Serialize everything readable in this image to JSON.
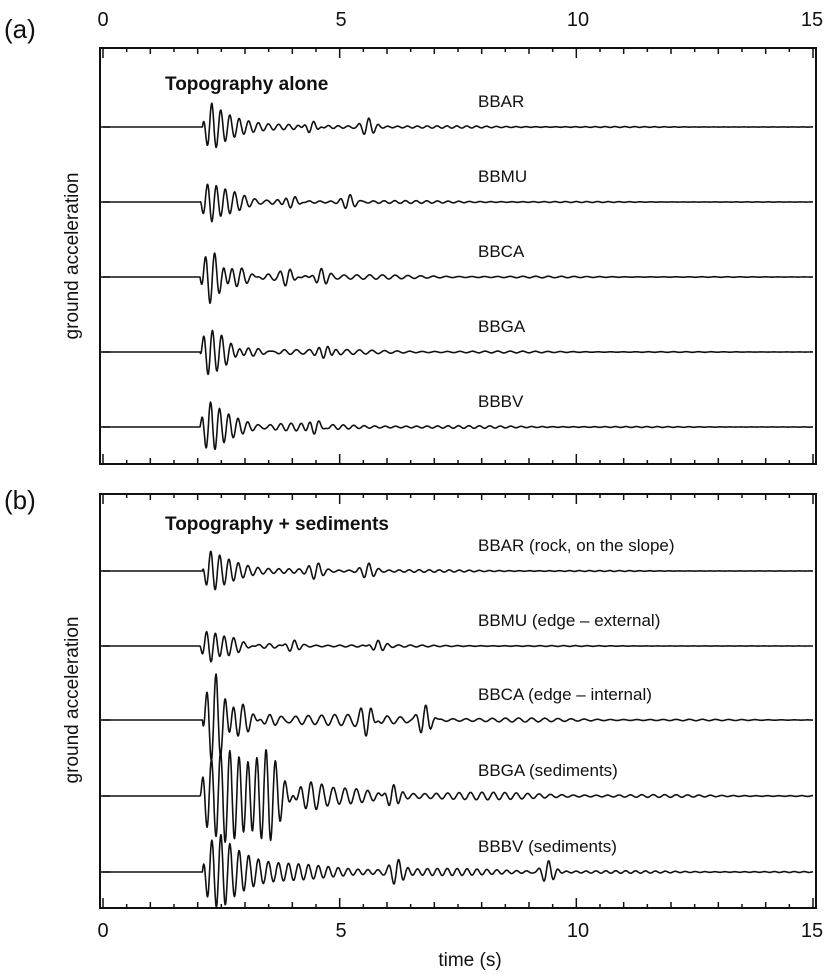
{
  "chart_data": [
    {
      "type": "line",
      "panel_label": "(a)",
      "title": "Topography alone",
      "ylabel": "ground acceleration",
      "xlabel": "",
      "xlim": [
        0,
        15
      ],
      "x_ticks": [
        "0",
        "5",
        "10",
        "15"
      ],
      "x_tick_labels_position": "top",
      "series": [
        {
          "name": "BBAR",
          "label": "BBAR",
          "onset_s": 2.1,
          "peak_s": 2.3,
          "rel_amplitude": 1.0,
          "coda_rel": 0.18,
          "late_bursts_s": [
            4.4,
            5.6
          ]
        },
        {
          "name": "BBMU",
          "label": "BBMU",
          "onset_s": 2.05,
          "peak_s": 2.3,
          "rel_amplitude": 0.85,
          "coda_rel": 0.2,
          "late_bursts_s": [
            4.0,
            5.2
          ]
        },
        {
          "name": "BBCA",
          "label": "BBCA",
          "onset_s": 2.05,
          "peak_s": 2.3,
          "rel_amplitude": 1.0,
          "coda_rel": 0.22,
          "late_bursts_s": [
            3.9,
            4.6
          ]
        },
        {
          "name": "BBGA",
          "label": "BBGA",
          "onset_s": 2.05,
          "peak_s": 2.25,
          "rel_amplitude": 1.05,
          "coda_rel": 0.2,
          "late_bursts_s": [
            4.7
          ]
        },
        {
          "name": "BBBV",
          "label": "BBBV",
          "onset_s": 2.05,
          "peak_s": 2.3,
          "rel_amplitude": 1.05,
          "coda_rel": 0.22,
          "late_bursts_s": [
            4.5
          ]
        }
      ]
    },
    {
      "type": "line",
      "panel_label": "(b)",
      "title": "Topography + sediments",
      "ylabel": "ground acceleration",
      "xlabel": "time (s)",
      "xlim": [
        0,
        15
      ],
      "x_ticks": [
        "0",
        "5",
        "10",
        "15"
      ],
      "x_tick_labels_position": "bottom",
      "series": [
        {
          "name": "BBAR",
          "label": "BBAR  (rock, on the slope)",
          "onset_s": 2.1,
          "peak_s": 2.3,
          "rel_amplitude": 0.85,
          "coda_rel": 0.2,
          "late_bursts_s": [
            4.5,
            5.6
          ]
        },
        {
          "name": "BBMU",
          "label": "BBMU  (edge – external)",
          "onset_s": 2.05,
          "peak_s": 2.3,
          "rel_amplitude": 0.7,
          "coda_rel": 0.18,
          "late_bursts_s": [
            4.0,
            5.8
          ]
        },
        {
          "name": "BBCA",
          "label": "BBCA  (edge – internal)",
          "onset_s": 2.1,
          "peak_s": 2.4,
          "rel_amplitude": 1.6,
          "coda_rel": 0.3,
          "late_bursts_s": [
            5.6,
            6.8
          ]
        },
        {
          "name": "BBGA",
          "label": "BBGA  (sediments)",
          "onset_s": 2.05,
          "peak_s": 3.5,
          "rel_amplitude": 1.55,
          "coda_rel": 0.35,
          "late_bursts_s": [
            6.1
          ]
        },
        {
          "name": "BBBV",
          "label": "BBBV  (sediments)",
          "onset_s": 2.1,
          "peak_s": 2.5,
          "rel_amplitude": 1.35,
          "coda_rel": 0.4,
          "late_bursts_s": [
            6.2,
            9.4
          ]
        }
      ]
    }
  ]
}
